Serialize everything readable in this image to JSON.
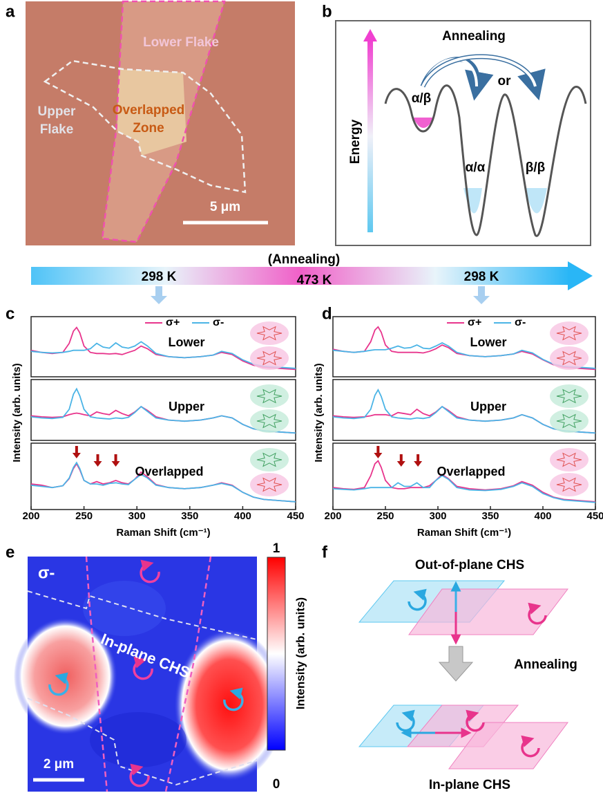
{
  "panel_labels": [
    "a",
    "b",
    "c",
    "d",
    "e",
    "f"
  ],
  "panel_a": {
    "lower": "Lower Flake",
    "upper": [
      "Upper",
      "Flake"
    ],
    "overlap": [
      "Overlapped",
      "Zone"
    ],
    "scale": "5 μm"
  },
  "panel_b": {
    "axis": "Energy",
    "process": "Annealing",
    "or": "or",
    "states": [
      "α/β",
      "α/α",
      "β/β"
    ]
  },
  "timeline": {
    "process": "(Annealing)",
    "temps": [
      "298 K",
      "473 K",
      "298 K"
    ]
  },
  "chart_data": [
    {
      "type": "line",
      "xlabel": "Raman Shift (cm⁻¹)",
      "ylabel": "Intensity (arb. units)",
      "xlim": [
        200,
        450
      ],
      "xticks": [
        200,
        250,
        300,
        350,
        400,
        450
      ],
      "ylim": [
        0,
        1
      ],
      "x": [
        200,
        210,
        220,
        230,
        236,
        240,
        243,
        246,
        250,
        256,
        262,
        268,
        274,
        280,
        286,
        292,
        298,
        304,
        310,
        318,
        330,
        345,
        360,
        372,
        380,
        390,
        400,
        410,
        420,
        435,
        450
      ],
      "series": [
        {
          "name": "σ+",
          "color": "#e8348c"
        },
        {
          "name": "σ-",
          "color": "#4ab4e6"
        }
      ],
      "panels": [
        {
          "label": "Lower",
          "values": [
            [
              0.42,
              0.38,
              0.36,
              0.38,
              0.55,
              0.78,
              0.85,
              0.75,
              0.5,
              0.38,
              0.36,
              0.36,
              0.35,
              0.36,
              0.34,
              0.38,
              0.42,
              0.5,
              0.45,
              0.34,
              0.3,
              0.28,
              0.3,
              0.33,
              0.38,
              0.34,
              0.22,
              0.14,
              0.1,
              0.08,
              0.06
            ],
            [
              0.4,
              0.38,
              0.37,
              0.38,
              0.4,
              0.42,
              0.42,
              0.42,
              0.42,
              0.45,
              0.55,
              0.48,
              0.46,
              0.56,
              0.48,
              0.46,
              0.5,
              0.58,
              0.5,
              0.36,
              0.3,
              0.28,
              0.3,
              0.33,
              0.4,
              0.36,
              0.24,
              0.16,
              0.12,
              0.1,
              0.08
            ]
          ]
        },
        {
          "label": "Upper",
          "values": [
            [
              0.38,
              0.36,
              0.35,
              0.36,
              0.4,
              0.42,
              0.43,
              0.42,
              0.4,
              0.38,
              0.45,
              0.42,
              0.4,
              0.48,
              0.42,
              0.38,
              0.45,
              0.55,
              0.48,
              0.36,
              0.3,
              0.28,
              0.3,
              0.34,
              0.38,
              0.34,
              0.22,
              0.14,
              0.1,
              0.08,
              0.06
            ],
            [
              0.36,
              0.34,
              0.33,
              0.35,
              0.5,
              0.78,
              0.88,
              0.75,
              0.5,
              0.36,
              0.34,
              0.33,
              0.32,
              0.34,
              0.33,
              0.35,
              0.44,
              0.55,
              0.46,
              0.34,
              0.3,
              0.28,
              0.3,
              0.34,
              0.38,
              0.34,
              0.22,
              0.14,
              0.1,
              0.08,
              0.06
            ]
          ]
        },
        {
          "label": "Overlapped",
          "values": [
            [
              0.36,
              0.34,
              0.3,
              0.33,
              0.45,
              0.62,
              0.7,
              0.6,
              0.42,
              0.36,
              0.4,
              0.36,
              0.38,
              0.42,
              0.38,
              0.36,
              0.44,
              0.56,
              0.48,
              0.35,
              0.3,
              0.28,
              0.3,
              0.34,
              0.38,
              0.34,
              0.22,
              0.14,
              0.1,
              0.08,
              0.06
            ],
            [
              0.34,
              0.32,
              0.3,
              0.33,
              0.46,
              0.64,
              0.72,
              0.62,
              0.42,
              0.36,
              0.36,
              0.34,
              0.37,
              0.38,
              0.36,
              0.35,
              0.44,
              0.52,
              0.46,
              0.34,
              0.3,
              0.28,
              0.3,
              0.34,
              0.37,
              0.33,
              0.22,
              0.14,
              0.1,
              0.08,
              0.06
            ]
          ]
        }
      ],
      "arrows_x": [
        243,
        263,
        280
      ]
    },
    {
      "type": "line",
      "xlabel": "Raman Shift (cm⁻¹)",
      "ylabel": "Intensity (arb. units)",
      "xlim": [
        200,
        450
      ],
      "xticks": [
        200,
        250,
        300,
        350,
        400,
        450
      ],
      "ylim": [
        0,
        1
      ],
      "x": [
        200,
        210,
        220,
        230,
        236,
        240,
        243,
        246,
        250,
        256,
        262,
        268,
        274,
        280,
        286,
        292,
        298,
        304,
        310,
        318,
        330,
        345,
        360,
        372,
        380,
        390,
        400,
        410,
        420,
        435,
        450
      ],
      "series": [
        {
          "name": "σ+",
          "color": "#e8348c"
        },
        {
          "name": "σ-",
          "color": "#4ab4e6"
        }
      ],
      "panels": [
        {
          "label": "Lower",
          "values": [
            [
              0.44,
              0.4,
              0.38,
              0.4,
              0.58,
              0.8,
              0.86,
              0.76,
              0.52,
              0.4,
              0.38,
              0.38,
              0.38,
              0.38,
              0.37,
              0.4,
              0.45,
              0.52,
              0.47,
              0.36,
              0.32,
              0.3,
              0.32,
              0.35,
              0.4,
              0.35,
              0.24,
              0.15,
              0.1,
              0.08,
              0.06
            ],
            [
              0.42,
              0.4,
              0.38,
              0.4,
              0.42,
              0.43,
              0.43,
              0.43,
              0.43,
              0.46,
              0.5,
              0.46,
              0.47,
              0.52,
              0.46,
              0.45,
              0.5,
              0.56,
              0.5,
              0.38,
              0.32,
              0.3,
              0.32,
              0.35,
              0.42,
              0.37,
              0.25,
              0.16,
              0.12,
              0.1,
              0.08
            ]
          ]
        },
        {
          "label": "Upper",
          "values": [
            [
              0.38,
              0.36,
              0.35,
              0.36,
              0.38,
              0.4,
              0.4,
              0.4,
              0.4,
              0.38,
              0.44,
              0.42,
              0.4,
              0.5,
              0.42,
              0.38,
              0.45,
              0.55,
              0.48,
              0.36,
              0.3,
              0.28,
              0.3,
              0.34,
              0.4,
              0.34,
              0.22,
              0.14,
              0.1,
              0.08,
              0.06
            ],
            [
              0.36,
              0.34,
              0.33,
              0.35,
              0.5,
              0.76,
              0.86,
              0.74,
              0.5,
              0.36,
              0.34,
              0.33,
              0.32,
              0.34,
              0.33,
              0.35,
              0.44,
              0.55,
              0.46,
              0.34,
              0.3,
              0.28,
              0.3,
              0.34,
              0.4,
              0.34,
              0.22,
              0.14,
              0.1,
              0.08,
              0.06
            ]
          ]
        },
        {
          "label": "Overlapped",
          "values": [
            [
              0.3,
              0.28,
              0.27,
              0.3,
              0.5,
              0.7,
              0.75,
              0.64,
              0.42,
              0.3,
              0.28,
              0.28,
              0.3,
              0.3,
              0.3,
              0.33,
              0.42,
              0.52,
              0.45,
              0.32,
              0.28,
              0.26,
              0.28,
              0.33,
              0.4,
              0.34,
              0.22,
              0.14,
              0.1,
              0.08,
              0.06
            ],
            [
              0.28,
              0.27,
              0.26,
              0.28,
              0.3,
              0.3,
              0.3,
              0.3,
              0.3,
              0.3,
              0.38,
              0.32,
              0.32,
              0.38,
              0.3,
              0.3,
              0.42,
              0.5,
              0.44,
              0.3,
              0.26,
              0.25,
              0.27,
              0.32,
              0.38,
              0.32,
              0.2,
              0.13,
              0.09,
              0.07,
              0.05
            ]
          ]
        }
      ],
      "arrows_x": [
        243,
        265,
        281
      ]
    }
  ],
  "panel_e": {
    "polarization": "σ-",
    "colorbar": {
      "label": "Intensity (arb. units)",
      "ticks": [
        0,
        1
      ]
    },
    "annotation": "In-plane CHS",
    "scale": "2 μm"
  },
  "panel_f": {
    "top": "Out-of-plane CHS",
    "process": "Annealing",
    "bottom": "In-plane CHS"
  }
}
